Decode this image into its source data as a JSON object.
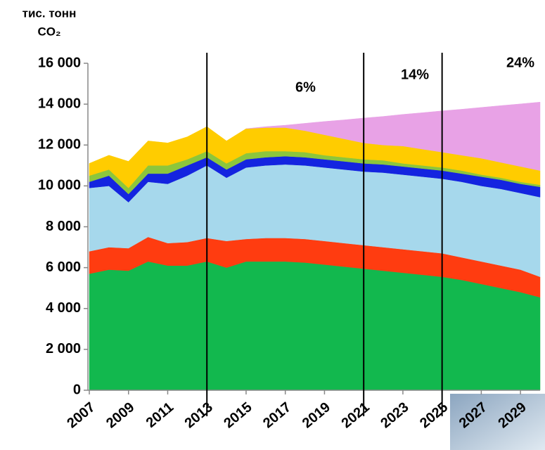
{
  "chart_data": {
    "type": "stacked_area",
    "y_label": [
      "тис. тонн",
      "CO₂"
    ],
    "x": [
      2007,
      2008,
      2009,
      2010,
      2011,
      2012,
      2013,
      2014,
      2015,
      2016,
      2017,
      2018,
      2019,
      2020,
      2021,
      2022,
      2023,
      2024,
      2025,
      2026,
      2027,
      2028,
      2029,
      2030
    ],
    "xlim": [
      2007,
      2030
    ],
    "xticks": [
      2007,
      2009,
      2011,
      2013,
      2015,
      2017,
      2019,
      2021,
      2023,
      2025,
      2027,
      2029
    ],
    "ylim": [
      0,
      16000
    ],
    "yticks": [
      0,
      {
        "value": 2000,
        "label": "2 000"
      },
      {
        "value": 4000,
        "label": "4 000"
      },
      {
        "value": 6000,
        "label": "6 000"
      },
      {
        "value": 8000,
        "label": "8 000"
      },
      {
        "value": 10000,
        "label": "10 000"
      },
      {
        "value": 12000,
        "label": "12 000"
      },
      {
        "value": 14000,
        "label": "14 000"
      },
      {
        "value": 16000,
        "label": "16 000"
      }
    ],
    "grid": false,
    "reference_lines": [
      2013,
      2021,
      2025
    ],
    "annotations": [
      "6%",
      "14%",
      "24%"
    ],
    "series": [
      {
        "color": "#12b84e",
        "values": [
          5700,
          5900,
          5850,
          6300,
          6100,
          6100,
          6300,
          6000,
          6300,
          6300,
          6300,
          6250,
          6150,
          6050,
          5950,
          5850,
          5750,
          5650,
          5550,
          5400,
          5200,
          5000,
          4800,
          4550
        ]
      },
      {
        "color": "#ff3c10",
        "values": [
          1100,
          1100,
          1100,
          1200,
          1100,
          1150,
          1150,
          1300,
          1100,
          1150,
          1150,
          1150,
          1150,
          1150,
          1150,
          1150,
          1150,
          1150,
          1150,
          1100,
          1100,
          1100,
          1100,
          1000
        ]
      },
      {
        "color": "#a6d8ec",
        "values": [
          3100,
          3000,
          2250,
          2700,
          2900,
          3250,
          3550,
          3100,
          3500,
          3550,
          3600,
          3600,
          3600,
          3600,
          3600,
          3650,
          3650,
          3650,
          3650,
          3700,
          3700,
          3750,
          3750,
          3900
        ]
      },
      {
        "color": "#1424e0",
        "values": [
          300,
          500,
          400,
          400,
          500,
          500,
          400,
          400,
          400,
          400,
          400,
          400,
          400,
          400,
          400,
          400,
          400,
          400,
          400,
          400,
          450,
          450,
          450,
          500
        ]
      },
      {
        "color": "#8cc63c",
        "values": [
          300,
          300,
          300,
          400,
          400,
          300,
          300,
          300,
          300,
          300,
          250,
          250,
          200,
          200,
          200,
          200,
          150,
          150,
          150,
          150,
          100,
          100,
          100,
          100
        ]
      },
      {
        "color": "#ffcc00",
        "values": [
          600,
          700,
          1300,
          1200,
          1100,
          1100,
          1200,
          1100,
          1200,
          1150,
          1150,
          1050,
          1000,
          900,
          800,
          750,
          850,
          800,
          750,
          750,
          800,
          750,
          750,
          700
        ]
      },
      {
        "color": "#e8a2e6",
        "values": [
          null,
          null,
          null,
          null,
          null,
          null,
          null,
          null,
          0,
          50,
          120,
          360,
          650,
          930,
          1220,
          1400,
          1550,
          1780,
          2020,
          2250,
          2490,
          2780,
          3060,
          3350
        ]
      }
    ]
  }
}
